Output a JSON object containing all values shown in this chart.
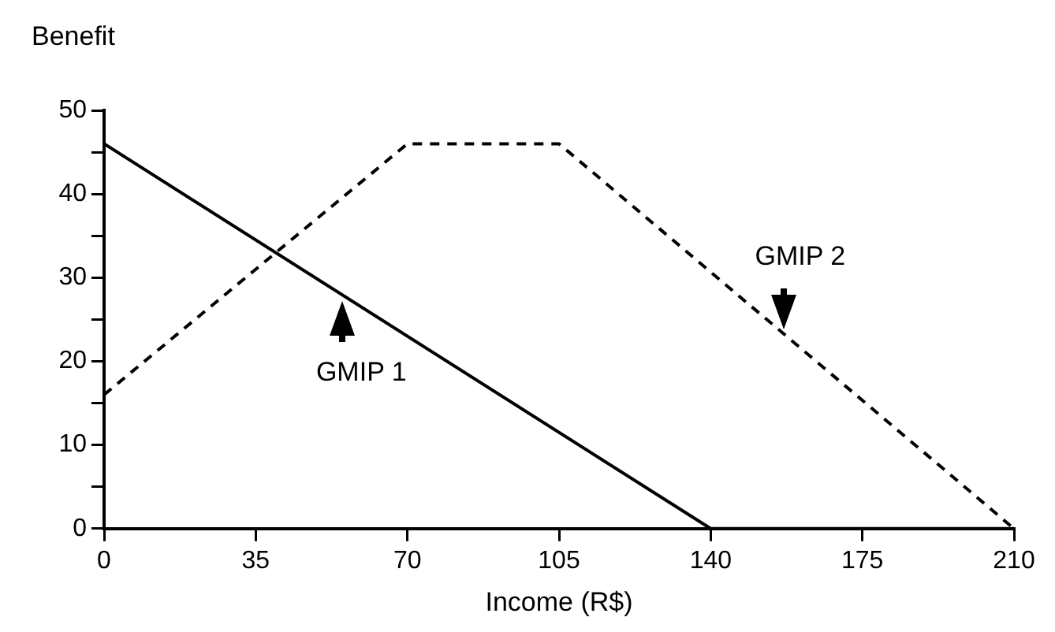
{
  "chart_data": {
    "type": "line",
    "ylabel": "Benefit",
    "xlabel": "Income (R$)",
    "xlim": [
      0,
      210
    ],
    "xticks": [
      0,
      35,
      70,
      105,
      140,
      175,
      210
    ],
    "ylim": [
      0,
      50
    ],
    "yticks": [
      0,
      {
        "value": 5,
        "label": null
      },
      10,
      {
        "value": 15,
        "label": null
      },
      20,
      {
        "value": 25,
        "label": null
      },
      30,
      {
        "value": 35,
        "label": null
      },
      40,
      {
        "value": 45,
        "label": null
      },
      50
    ],
    "grid": false,
    "legend": false,
    "marker": "none",
    "series": [
      {
        "color": "#000000",
        "line_style": "solid",
        "x": [
          0,
          140,
          210
        ],
        "values": [
          46,
          0,
          0
        ]
      },
      {
        "color": "#000000",
        "line_style": "dashed",
        "x": [
          0,
          70,
          105,
          210
        ],
        "values": [
          16,
          46,
          46,
          0
        ]
      }
    ],
    "annotations": [
      {
        "text": "GMIP 1",
        "x": 55,
        "y": 28
      },
      {
        "text": "GMIP 2",
        "x": 157,
        "y": 23
      }
    ]
  }
}
